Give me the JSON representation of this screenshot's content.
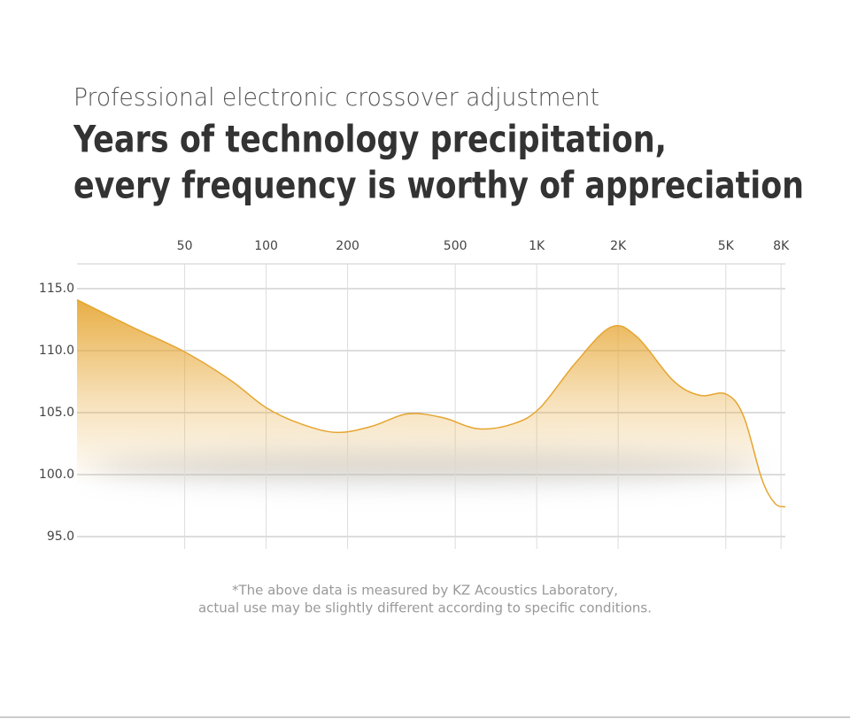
{
  "subtitle": "Professional electronic crossover adjustment",
  "title_lines": [
    "Years of technology precipitation,",
    "every frequency is worthy of appreciation"
  ],
  "chart_data": {
    "type": "area",
    "xscale": "log",
    "x": [
      20,
      32,
      50,
      74,
      100,
      134,
      182,
      246,
      333,
      449,
      607,
      820,
      1030,
      1390,
      1880,
      2350,
      3190,
      4000,
      5010,
      5820,
      6780,
      7580,
      8300
    ],
    "values": [
      114.1,
      111.9,
      109.9,
      107.6,
      105.4,
      104.1,
      103.4,
      103.9,
      104.9,
      104.6,
      103.7,
      104.1,
      105.4,
      109,
      111.9,
      111.1,
      107.6,
      106.4,
      106.5,
      104.7,
      99.7,
      97.7,
      97.4
    ],
    "color": "#e6a530",
    "xlim": [
      20,
      8300
    ],
    "xticks": [
      50,
      100,
      200,
      500,
      {
        "value": 1000,
        "label": "1K"
      },
      {
        "value": 2000,
        "label": "2K"
      },
      {
        "value": 5000,
        "label": "5K"
      },
      {
        "value": 8000,
        "label": "8K"
      }
    ],
    "ylim": [
      94,
      117
    ],
    "yticks": [
      {
        "value": 95,
        "label": "95.0"
      },
      {
        "value": 100,
        "label": "100.0"
      },
      {
        "value": 105,
        "label": "105.0"
      },
      {
        "value": 110,
        "label": "110.0"
      },
      {
        "value": 115,
        "label": "115.0"
      }
    ],
    "grid": true
  },
  "note_lines": [
    "*The above data is measured by KZ Acoustics Laboratory,",
    "actual use may be slightly different according to specific conditions."
  ]
}
